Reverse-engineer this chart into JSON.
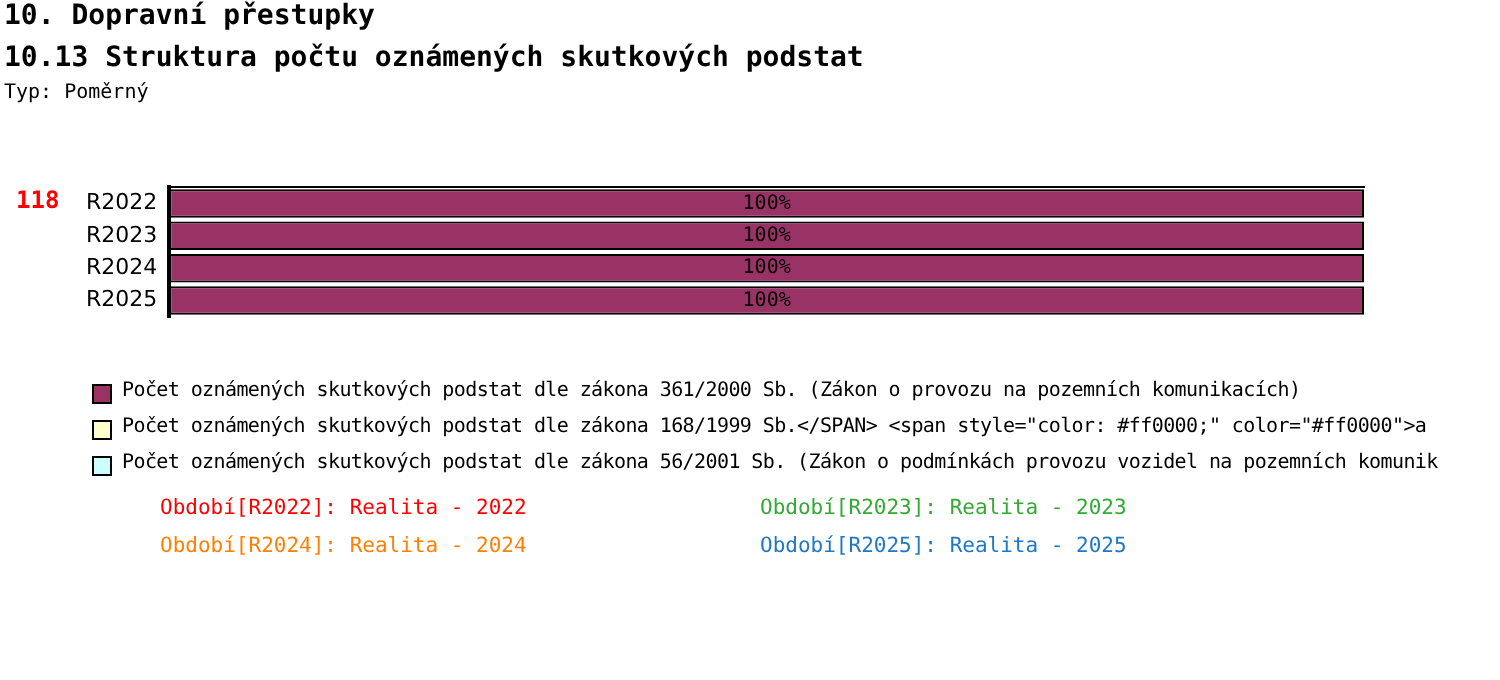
{
  "chart_data": {
    "type": "bar",
    "orientation": "horizontal",
    "stacked": true,
    "title": "10. Dopravní přestupky",
    "subtitle": "10.13 Struktura počtu oznámených skutkových podstat",
    "categories": [
      "R2022",
      "R2023",
      "R2024",
      "R2025"
    ],
    "series": [
      {
        "name": "Počet oznámených skutkových podstat dle zákona 361/2000 Sb. (Zákon o provozu na pozemních komunikacích)",
        "color": "#993366",
        "values": [
          100,
          100,
          100,
          100
        ],
        "value_labels": [
          "100%",
          "100%",
          "100%",
          "100%"
        ]
      },
      {
        "name": "Počet oznámených skutkových podstat dle zákona 168/1999 Sb.</SPAN> <span style=\"color: #ff0000;\" color=\"#ff0000\">a",
        "color": "#ffffcc",
        "values": [
          0,
          0,
          0,
          0
        ]
      },
      {
        "name": "Počet oznámených skutkových podstat dle zákona 56/2001 Sb. (Zákon o podmínkách provozu vozidel na pozemních komunik",
        "color": "#ccffff",
        "values": [
          0,
          0,
          0,
          0
        ]
      }
    ],
    "tick_labels": "y",
    "grid": false,
    "legend": "bottom",
    "annotations": [
      "Typ: Poměrný",
      "118",
      "Období[R2022]: Realita - 2022",
      "Období[R2023]: Realita - 2023",
      "Období[R2024]: Realita - 2024",
      "Období[R2025]: Realita - 2025"
    ]
  }
}
